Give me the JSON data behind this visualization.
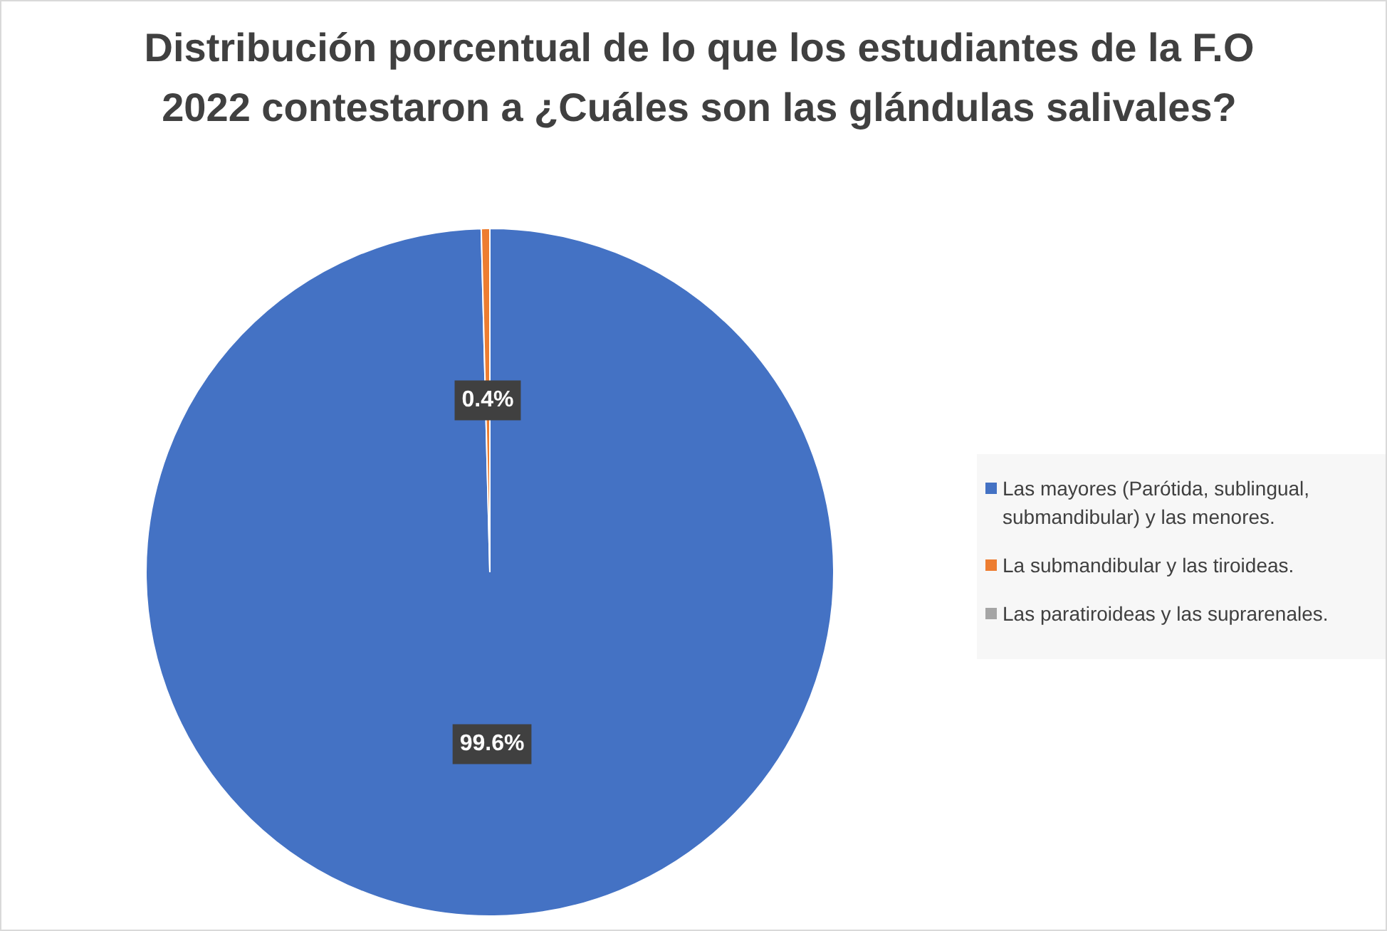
{
  "chart_data": {
    "type": "pie",
    "title": "Distribución porcentual de lo que los estudiantes de la F.O 2022 contestaron a ¿Cuáles son las glándulas salivales?",
    "categories": [
      "Las mayores (Parótida, sublingual, submandibular) y las menores.",
      "La submandibular y las tiroideas.",
      "Las paratiroideas y las suprarenales."
    ],
    "values": [
      99.6,
      0.4,
      0
    ],
    "colors": [
      "#4472c4",
      "#ed7d31",
      "#a5a5a5"
    ],
    "value_labels": [
      "99.6%",
      "0.4%",
      null
    ],
    "legend": "right"
  }
}
